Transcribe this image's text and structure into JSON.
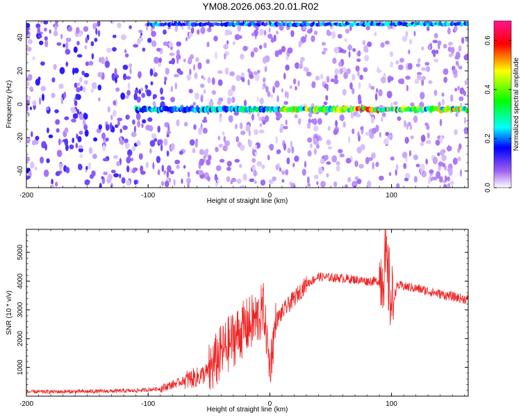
{
  "title": "YM08.2026.063.20.01.R02",
  "chart_data": [
    {
      "type": "heatmap",
      "name": "spectrogram",
      "xlabel": "Height of straight line (km)",
      "ylabel": "Frequency (Hz)",
      "xlim": [
        -200,
        163
      ],
      "ylim": [
        -50,
        50
      ],
      "xticks": [
        -200,
        -100,
        0,
        100
      ],
      "yticks": [
        -40,
        -20,
        0,
        20,
        40
      ],
      "colorbar": {
        "label": "Normalized spectral amplitude",
        "range": [
          0.0,
          0.68
        ],
        "ticks": [
          0.0,
          0.2,
          0.4,
          0.6
        ],
        "tick_labels": [
          "0.0",
          "0.2",
          "0.4",
          "0.6"
        ],
        "colormap": [
          "#ffffff",
          "#8a2be2",
          "#0000ff",
          "#00ffff",
          "#00ff00",
          "#ffff00",
          "#ff0000",
          "#ff1493"
        ]
      },
      "features": {
        "carrier_line_freq_hz": -3,
        "carrier_start_km": -110,
        "top_line_freq_hz": 48,
        "top_line_start_km": -100
      }
    },
    {
      "type": "line",
      "name": "snr",
      "xlabel": "Height of straight line (km)",
      "ylabel": "SNR (10 * v/v)",
      "xlim": [
        -200,
        163
      ],
      "ylim": [
        0,
        5800
      ],
      "xticks": [
        -200,
        -100,
        0,
        100
      ],
      "yticks": [
        1000,
        2000,
        3000,
        4000,
        5000
      ],
      "color": "#ee2222",
      "series": [
        {
          "name": "SNR",
          "x": [
            -200,
            -150,
            -110,
            -90,
            -80,
            -70,
            -60,
            -50,
            -40,
            -30,
            -20,
            -10,
            -5,
            0,
            5,
            10,
            20,
            30,
            40,
            60,
            80,
            90,
            95,
            98,
            100,
            105,
            120,
            140,
            163
          ],
          "y": [
            150,
            160,
            190,
            260,
            400,
            550,
            650,
            850,
            1500,
            2000,
            2400,
            2700,
            3000,
            1000,
            2600,
            2900,
            3400,
            3900,
            4150,
            4100,
            4000,
            4000,
            4600,
            3900,
            3200,
            3850,
            3750,
            3550,
            3350
          ]
        }
      ]
    }
  ]
}
